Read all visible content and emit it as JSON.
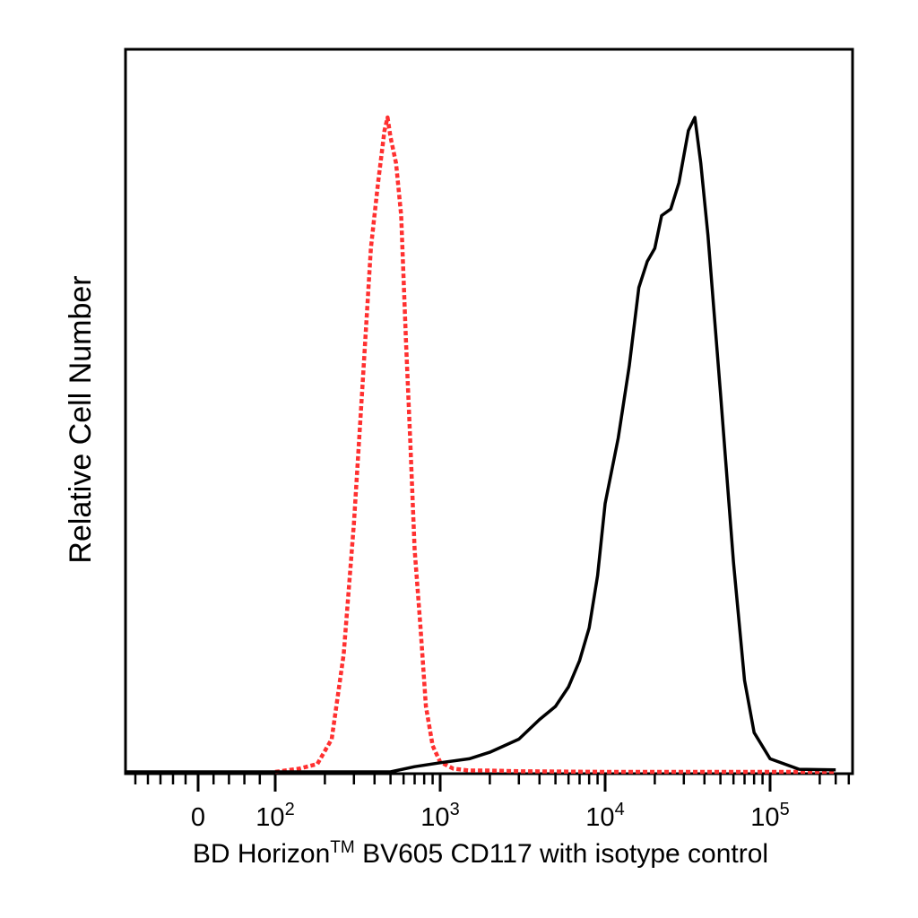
{
  "chart_data": {
    "type": "line",
    "title": "",
    "xlabel_prefix": "BD Horizon",
    "xlabel_tm": "TM",
    "xlabel_suffix": " BV605 CD117 with isotype control",
    "ylabel": "Relative Cell Number",
    "x_scale": "biexponential",
    "xlim": [
      -300,
      250000
    ],
    "ylim": [
      0,
      1.0
    ],
    "grid": false,
    "legend": "none",
    "x_ticks": [
      {
        "label": "0",
        "value": 0
      },
      {
        "base": "10",
        "exp": "2",
        "value": 100
      },
      {
        "base": "10",
        "exp": "3",
        "value": 1000
      },
      {
        "base": "10",
        "exp": "4",
        "value": 10000
      },
      {
        "base": "10",
        "exp": "5",
        "value": 100000
      }
    ],
    "series": [
      {
        "role": "isotype control",
        "style": "dotted",
        "color": "#ff3030",
        "x": [
          100,
          140,
          180,
          220,
          260,
          300,
          340,
          380,
          420,
          460,
          480,
          500,
          540,
          580,
          620,
          660,
          700,
          760,
          820,
          900,
          1000,
          1200,
          1500,
          2000,
          3000,
          10000,
          250000
        ],
        "y": [
          0.0,
          0.005,
          0.012,
          0.05,
          0.18,
          0.38,
          0.6,
          0.8,
          0.9,
          0.98,
          1.0,
          0.97,
          0.93,
          0.85,
          0.66,
          0.5,
          0.34,
          0.22,
          0.1,
          0.04,
          0.015,
          0.005,
          0.002,
          0.002,
          0.001,
          0.0,
          0.0
        ]
      },
      {
        "role": "BV605 CD117",
        "style": "solid",
        "color": "#000000",
        "x": [
          -300,
          500,
          700,
          1000,
          1500,
          2000,
          3000,
          4000,
          5000,
          6000,
          7000,
          8000,
          9000,
          10000,
          12000,
          14000,
          16000,
          18000,
          20000,
          22000,
          25000,
          28000,
          32000,
          35000,
          38000,
          42000,
          50000,
          60000,
          70000,
          80000,
          100000,
          150000,
          250000
        ],
        "y": [
          0.0,
          0.0,
          0.008,
          0.014,
          0.02,
          0.03,
          0.05,
          0.08,
          0.1,
          0.13,
          0.17,
          0.22,
          0.3,
          0.41,
          0.51,
          0.62,
          0.74,
          0.78,
          0.8,
          0.85,
          0.86,
          0.9,
          0.98,
          1.0,
          0.93,
          0.82,
          0.58,
          0.32,
          0.14,
          0.06,
          0.02,
          0.004,
          0.003
        ]
      }
    ]
  }
}
